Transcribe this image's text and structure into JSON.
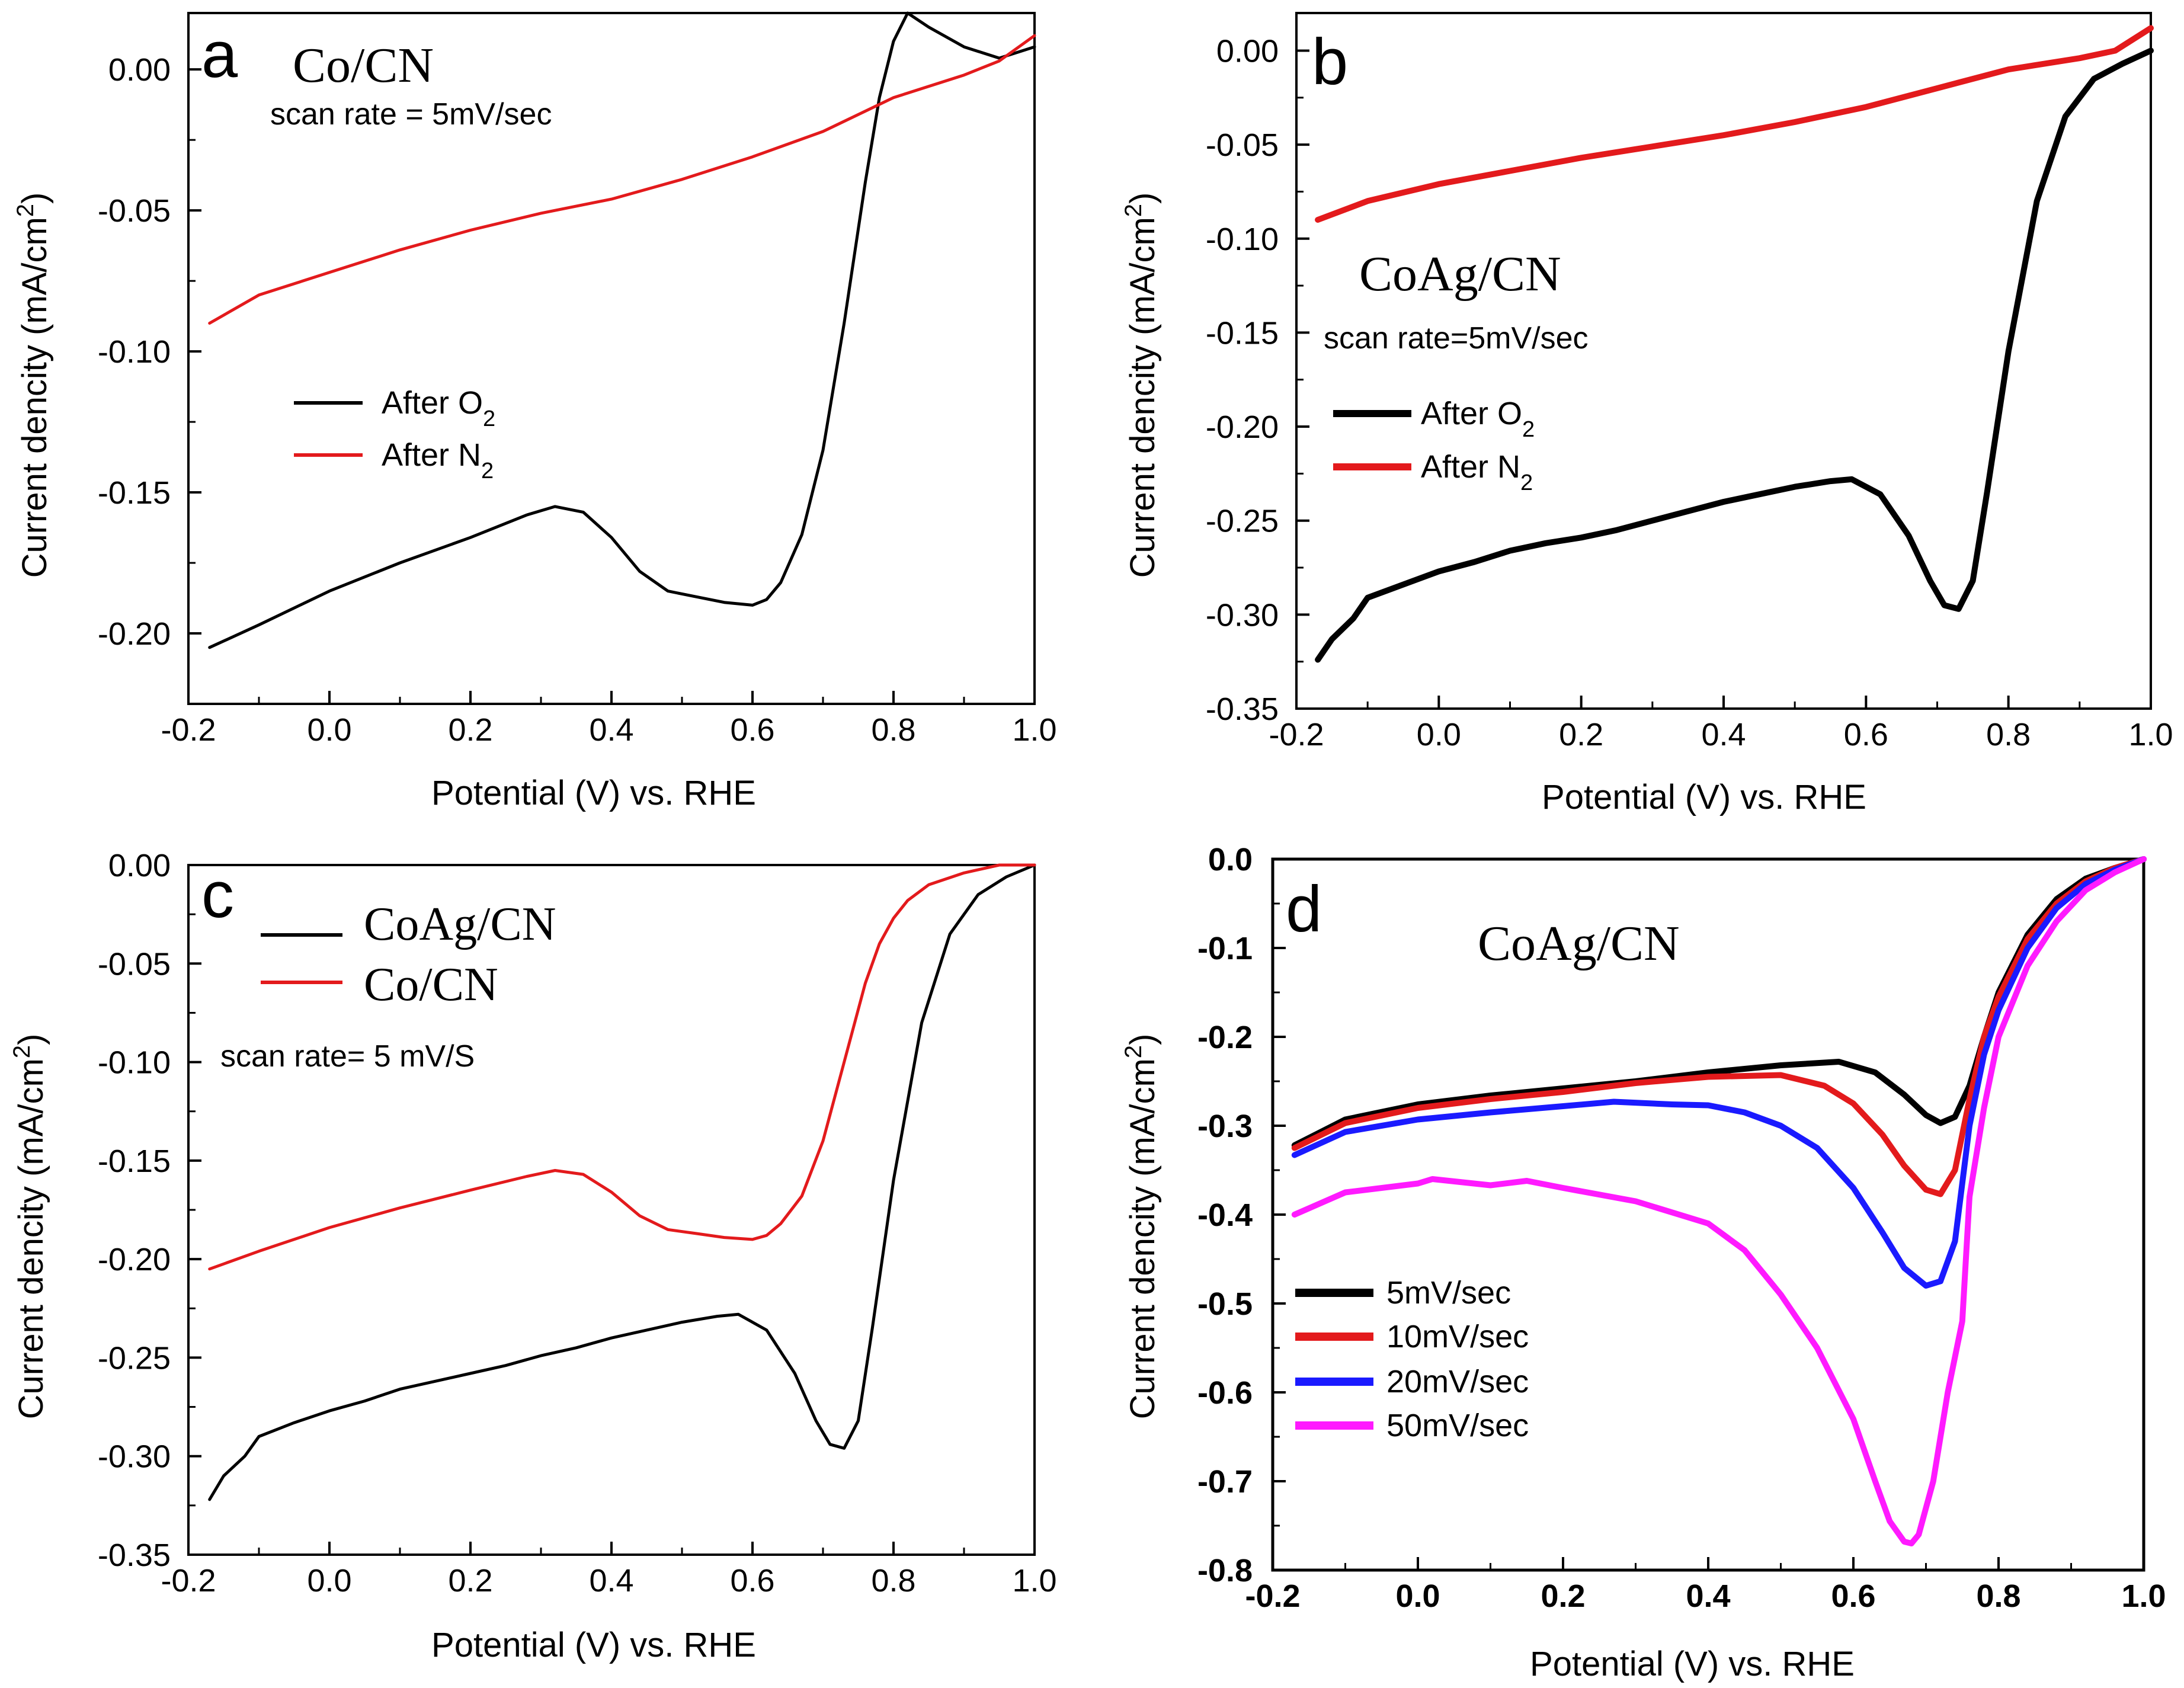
{
  "figure": {
    "background": "#ffffff"
  },
  "chart_data": [
    {
      "id": "a",
      "type": "line",
      "panel_letter": "a",
      "label": "Co/CN",
      "note": "scan rate = 5mV/sec",
      "xlabel": "Potential (V) vs. RHE",
      "ylabel": "Current dencity (mA/cm",
      "ylabel_sup": "2",
      "ylabel_close": ")",
      "xlim": [
        -0.2,
        1.0
      ],
      "ylim": [
        -0.225,
        0.02
      ],
      "xticks": [
        -0.2,
        0.0,
        0.2,
        0.4,
        0.6,
        0.8,
        1.0
      ],
      "xtick_labels": [
        "-0.2",
        "0.0",
        "0.2",
        "0.4",
        "0.6",
        "0.8",
        "1.0"
      ],
      "yticks": [
        0.0,
        -0.05,
        -0.1,
        -0.15,
        -0.2
      ],
      "ytick_labels": [
        "0.00",
        "-0.05",
        "-0.10",
        "-0.15",
        "-0.20"
      ],
      "legend": [
        {
          "name": "After O",
          "sub": "2",
          "color": "#000000"
        },
        {
          "name": "After N",
          "sub": "2",
          "color": "#e31a1c"
        }
      ],
      "series": [
        {
          "name": "After O2",
          "color": "#000000",
          "x": [
            -0.17,
            -0.1,
            0.0,
            0.1,
            0.2,
            0.28,
            0.32,
            0.36,
            0.4,
            0.44,
            0.48,
            0.52,
            0.56,
            0.6,
            0.62,
            0.64,
            0.67,
            0.7,
            0.73,
            0.76,
            0.78,
            0.8,
            0.82,
            0.85,
            0.9,
            0.95,
            1.0
          ],
          "y": [
            -0.205,
            -0.197,
            -0.185,
            -0.175,
            -0.166,
            -0.158,
            -0.155,
            -0.157,
            -0.166,
            -0.178,
            -0.185,
            -0.187,
            -0.189,
            -0.19,
            -0.188,
            -0.182,
            -0.165,
            -0.135,
            -0.09,
            -0.04,
            -0.01,
            0.01,
            0.02,
            0.015,
            0.008,
            0.004,
            0.008
          ]
        },
        {
          "name": "After N2",
          "color": "#e31a1c",
          "x": [
            -0.17,
            -0.1,
            0.0,
            0.1,
            0.2,
            0.3,
            0.4,
            0.5,
            0.6,
            0.7,
            0.8,
            0.9,
            0.95,
            1.0
          ],
          "y": [
            -0.09,
            -0.08,
            -0.072,
            -0.064,
            -0.057,
            -0.051,
            -0.046,
            -0.039,
            -0.031,
            -0.022,
            -0.01,
            -0.002,
            0.003,
            0.012
          ]
        }
      ]
    },
    {
      "id": "b",
      "type": "line",
      "panel_letter": "b",
      "label": "CoAg/CN",
      "note": "scan rate=5mV/sec",
      "xlabel": "Potential (V) vs. RHE",
      "ylabel": "Current dencity (mA/cm",
      "ylabel_sup": "2",
      "ylabel_close": ")",
      "xlim": [
        -0.2,
        1.0
      ],
      "ylim": [
        -0.35,
        0.02
      ],
      "xticks": [
        -0.2,
        0.0,
        0.2,
        0.4,
        0.6,
        0.8,
        1.0
      ],
      "xtick_labels": [
        "-0.2",
        "0.0",
        "0.2",
        "0.4",
        "0.6",
        "0.8",
        "1.0"
      ],
      "yticks": [
        0.0,
        -0.05,
        -0.1,
        -0.15,
        -0.2,
        -0.25,
        -0.3,
        -0.35
      ],
      "ytick_labels": [
        "0.00",
        "-0.05",
        "-0.10",
        "-0.15",
        "-0.20",
        "-0.25",
        "-0.30",
        "-0.35"
      ],
      "legend": [
        {
          "name": "After O",
          "sub": "2",
          "color": "#000000"
        },
        {
          "name": "After N",
          "sub": "2",
          "color": "#e31a1c"
        }
      ],
      "series": [
        {
          "name": "After O2",
          "color": "#000000",
          "x": [
            -0.17,
            -0.15,
            -0.12,
            -0.1,
            -0.05,
            0.0,
            0.05,
            0.1,
            0.15,
            0.2,
            0.25,
            0.3,
            0.35,
            0.4,
            0.45,
            0.5,
            0.55,
            0.58,
            0.62,
            0.66,
            0.69,
            0.71,
            0.73,
            0.75,
            0.77,
            0.8,
            0.84,
            0.88,
            0.92,
            0.96,
            1.0
          ],
          "y": [
            -0.324,
            -0.313,
            -0.302,
            -0.291,
            -0.284,
            -0.277,
            -0.272,
            -0.266,
            -0.262,
            -0.259,
            -0.255,
            -0.25,
            -0.245,
            -0.24,
            -0.236,
            -0.232,
            -0.229,
            -0.228,
            -0.236,
            -0.258,
            -0.282,
            -0.295,
            -0.297,
            -0.282,
            -0.235,
            -0.16,
            -0.08,
            -0.035,
            -0.015,
            -0.007,
            0.0
          ]
        },
        {
          "name": "After N2",
          "color": "#e31a1c",
          "x": [
            -0.17,
            -0.1,
            0.0,
            0.1,
            0.2,
            0.3,
            0.4,
            0.5,
            0.6,
            0.7,
            0.8,
            0.9,
            0.95,
            1.0
          ],
          "y": [
            -0.09,
            -0.08,
            -0.071,
            -0.064,
            -0.057,
            -0.051,
            -0.045,
            -0.038,
            -0.03,
            -0.02,
            -0.01,
            -0.004,
            0.0,
            0.012
          ]
        }
      ]
    },
    {
      "id": "c",
      "type": "line",
      "panel_letter": "c",
      "note": "scan rate= 5 mV/S",
      "xlabel": "Potential (V) vs. RHE",
      "ylabel": "Current dencity (mA/cm",
      "ylabel_sup": "2",
      "ylabel_close": ")",
      "xlim": [
        -0.2,
        1.0
      ],
      "ylim": [
        -0.35,
        0.0
      ],
      "xticks": [
        -0.2,
        0.0,
        0.2,
        0.4,
        0.6,
        0.8,
        1.0
      ],
      "xtick_labels": [
        "-0.2",
        "0.0",
        "0.2",
        "0.4",
        "0.6",
        "0.8",
        "1.0"
      ],
      "yticks": [
        0.0,
        -0.05,
        -0.1,
        -0.15,
        -0.2,
        -0.25,
        -0.3,
        -0.35
      ],
      "ytick_labels": [
        "0.00",
        "-0.05",
        "-0.10",
        "-0.15",
        "-0.20",
        "-0.25",
        "-0.30",
        "-0.35"
      ],
      "legend": [
        {
          "name": "CoAg/CN",
          "color": "#000000"
        },
        {
          "name": "Co/CN",
          "color": "#e31a1c"
        }
      ],
      "series": [
        {
          "name": "CoAg/CN",
          "color": "#000000",
          "x": [
            -0.17,
            -0.15,
            -0.12,
            -0.1,
            -0.05,
            0.0,
            0.05,
            0.1,
            0.15,
            0.2,
            0.25,
            0.3,
            0.35,
            0.4,
            0.45,
            0.5,
            0.55,
            0.58,
            0.62,
            0.66,
            0.69,
            0.71,
            0.73,
            0.75,
            0.77,
            0.8,
            0.84,
            0.88,
            0.92,
            0.96,
            1.0
          ],
          "y": [
            -0.322,
            -0.31,
            -0.3,
            -0.29,
            -0.283,
            -0.277,
            -0.272,
            -0.266,
            -0.262,
            -0.258,
            -0.254,
            -0.249,
            -0.245,
            -0.24,
            -0.236,
            -0.232,
            -0.229,
            -0.228,
            -0.236,
            -0.258,
            -0.282,
            -0.294,
            -0.296,
            -0.282,
            -0.235,
            -0.16,
            -0.08,
            -0.035,
            -0.015,
            -0.006,
            0.0
          ]
        },
        {
          "name": "Co/CN",
          "color": "#e31a1c",
          "x": [
            -0.17,
            -0.1,
            0.0,
            0.1,
            0.2,
            0.28,
            0.32,
            0.36,
            0.4,
            0.44,
            0.48,
            0.52,
            0.56,
            0.6,
            0.62,
            0.64,
            0.67,
            0.7,
            0.73,
            0.76,
            0.78,
            0.8,
            0.82,
            0.85,
            0.9,
            0.95,
            1.0
          ],
          "y": [
            -0.205,
            -0.196,
            -0.184,
            -0.174,
            -0.165,
            -0.158,
            -0.155,
            -0.157,
            -0.166,
            -0.178,
            -0.185,
            -0.187,
            -0.189,
            -0.19,
            -0.188,
            -0.182,
            -0.168,
            -0.14,
            -0.1,
            -0.06,
            -0.04,
            -0.027,
            -0.018,
            -0.01,
            -0.004,
            0.0,
            0.0
          ]
        }
      ]
    },
    {
      "id": "d",
      "type": "line",
      "panel_letter": "d",
      "label": "CoAg/CN",
      "xlabel": "Potential (V) vs. RHE",
      "ylabel": "Current dencity (mA/cm",
      "ylabel_sup": "2",
      "ylabel_close": ")",
      "xlim": [
        -0.2,
        1.0
      ],
      "ylim": [
        -0.8,
        0.0
      ],
      "xticks": [
        -0.2,
        0.0,
        0.2,
        0.4,
        0.6,
        0.8,
        1.0
      ],
      "xtick_labels": [
        "-0.2",
        "0.0",
        "0.2",
        "0.4",
        "0.6",
        "0.8",
        "1.0"
      ],
      "yticks": [
        0.0,
        -0.1,
        -0.2,
        -0.3,
        -0.4,
        -0.5,
        -0.6,
        -0.7,
        -0.8
      ],
      "ytick_labels": [
        "0.0",
        "-0.1",
        "-0.2",
        "-0.3",
        "-0.4",
        "-0.5",
        "-0.6",
        "-0.7",
        "-0.8"
      ],
      "legend": [
        {
          "name": "5mV/sec",
          "color": "#000000"
        },
        {
          "name": "10mV/sec",
          "color": "#e31a1c"
        },
        {
          "name": "20mV/sec",
          "color": "#1a1aff"
        },
        {
          "name": "50mV/sec",
          "color": "#ff1aff"
        }
      ],
      "series": [
        {
          "name": "5mV/sec",
          "color": "#000000",
          "x": [
            -0.17,
            -0.1,
            0.0,
            0.1,
            0.2,
            0.3,
            0.4,
            0.5,
            0.58,
            0.63,
            0.67,
            0.7,
            0.72,
            0.74,
            0.76,
            0.78,
            0.8,
            0.84,
            0.88,
            0.92,
            0.96,
            1.0
          ],
          "y": [
            -0.322,
            -0.293,
            -0.276,
            -0.266,
            -0.258,
            -0.25,
            -0.24,
            -0.232,
            -0.228,
            -0.24,
            -0.265,
            -0.288,
            -0.297,
            -0.29,
            -0.255,
            -0.2,
            -0.15,
            -0.085,
            -0.045,
            -0.022,
            -0.01,
            0.0
          ]
        },
        {
          "name": "10mV/sec",
          "color": "#e31a1c",
          "x": [
            -0.17,
            -0.1,
            0.0,
            0.1,
            0.2,
            0.3,
            0.4,
            0.5,
            0.56,
            0.6,
            0.64,
            0.67,
            0.7,
            0.72,
            0.74,
            0.76,
            0.78,
            0.8,
            0.84,
            0.88,
            0.92,
            0.96,
            1.0
          ],
          "y": [
            -0.325,
            -0.297,
            -0.28,
            -0.27,
            -0.262,
            -0.252,
            -0.245,
            -0.243,
            -0.255,
            -0.275,
            -0.31,
            -0.345,
            -0.372,
            -0.377,
            -0.35,
            -0.27,
            -0.2,
            -0.155,
            -0.09,
            -0.05,
            -0.025,
            -0.01,
            0.0
          ]
        },
        {
          "name": "20mV/sec",
          "color": "#1a1aff",
          "x": [
            -0.17,
            -0.1,
            0.0,
            0.1,
            0.2,
            0.27,
            0.35,
            0.4,
            0.45,
            0.5,
            0.55,
            0.6,
            0.64,
            0.67,
            0.7,
            0.72,
            0.74,
            0.76,
            0.78,
            0.8,
            0.84,
            0.88,
            0.92,
            0.96,
            1.0
          ],
          "y": [
            -0.333,
            -0.307,
            -0.293,
            -0.285,
            -0.278,
            -0.273,
            -0.276,
            -0.277,
            -0.285,
            -0.3,
            -0.325,
            -0.37,
            -0.42,
            -0.46,
            -0.48,
            -0.475,
            -0.43,
            -0.3,
            -0.22,
            -0.17,
            -0.1,
            -0.055,
            -0.028,
            -0.012,
            0.0
          ]
        },
        {
          "name": "50mV/sec",
          "color": "#ff1aff",
          "x": [
            -0.17,
            -0.1,
            0.0,
            0.02,
            0.1,
            0.15,
            0.2,
            0.3,
            0.4,
            0.45,
            0.5,
            0.55,
            0.6,
            0.63,
            0.65,
            0.67,
            0.68,
            0.69,
            0.71,
            0.73,
            0.75,
            0.76,
            0.78,
            0.8,
            0.84,
            0.88,
            0.92,
            0.96,
            1.0
          ],
          "y": [
            -0.4,
            -0.375,
            -0.365,
            -0.36,
            -0.367,
            -0.362,
            -0.37,
            -0.385,
            -0.41,
            -0.44,
            -0.49,
            -0.55,
            -0.63,
            -0.7,
            -0.745,
            -0.768,
            -0.77,
            -0.76,
            -0.7,
            -0.6,
            -0.52,
            -0.38,
            -0.28,
            -0.2,
            -0.12,
            -0.07,
            -0.035,
            -0.015,
            0.0
          ]
        }
      ]
    }
  ]
}
